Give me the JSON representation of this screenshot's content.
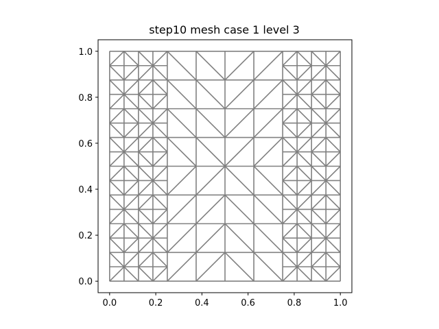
{
  "chart_data": {
    "type": "mesh",
    "title": "step10 mesh case 1 level 3",
    "xlabel": "",
    "ylabel": "",
    "xlim": [
      -0.05,
      1.05
    ],
    "ylim": [
      -0.05,
      1.05
    ],
    "xticks": [
      "0.0",
      "0.2",
      "0.4",
      "0.6",
      "0.8",
      "1.0"
    ],
    "yticks": [
      "0.0",
      "0.2",
      "0.4",
      "0.6",
      "0.8",
      "1.0"
    ],
    "grid": false,
    "legend": "none",
    "line_color": "#808080",
    "domain": [
      [
        0,
        0
      ],
      [
        1,
        0
      ],
      [
        1,
        1
      ],
      [
        0,
        1
      ]
    ],
    "vertical_lines_x": [
      0,
      0.125,
      0.25,
      0.375,
      0.5,
      0.625,
      0.75,
      0.875,
      1
    ],
    "horizontal_lines_y": [
      0,
      0.125,
      0.25,
      0.375,
      0.5,
      0.625,
      0.75,
      0.875,
      1
    ],
    "refined_regions_x": [
      [
        0,
        0.25
      ],
      [
        0.75,
        1
      ]
    ],
    "refined_lines_y": [
      0.0625,
      0.1875,
      0.3125,
      0.4375,
      0.5625,
      0.6875,
      0.8125,
      0.9375
    ],
    "refined_lines_x": [
      0.0625,
      0.1875,
      0.8125,
      0.9375
    ]
  }
}
